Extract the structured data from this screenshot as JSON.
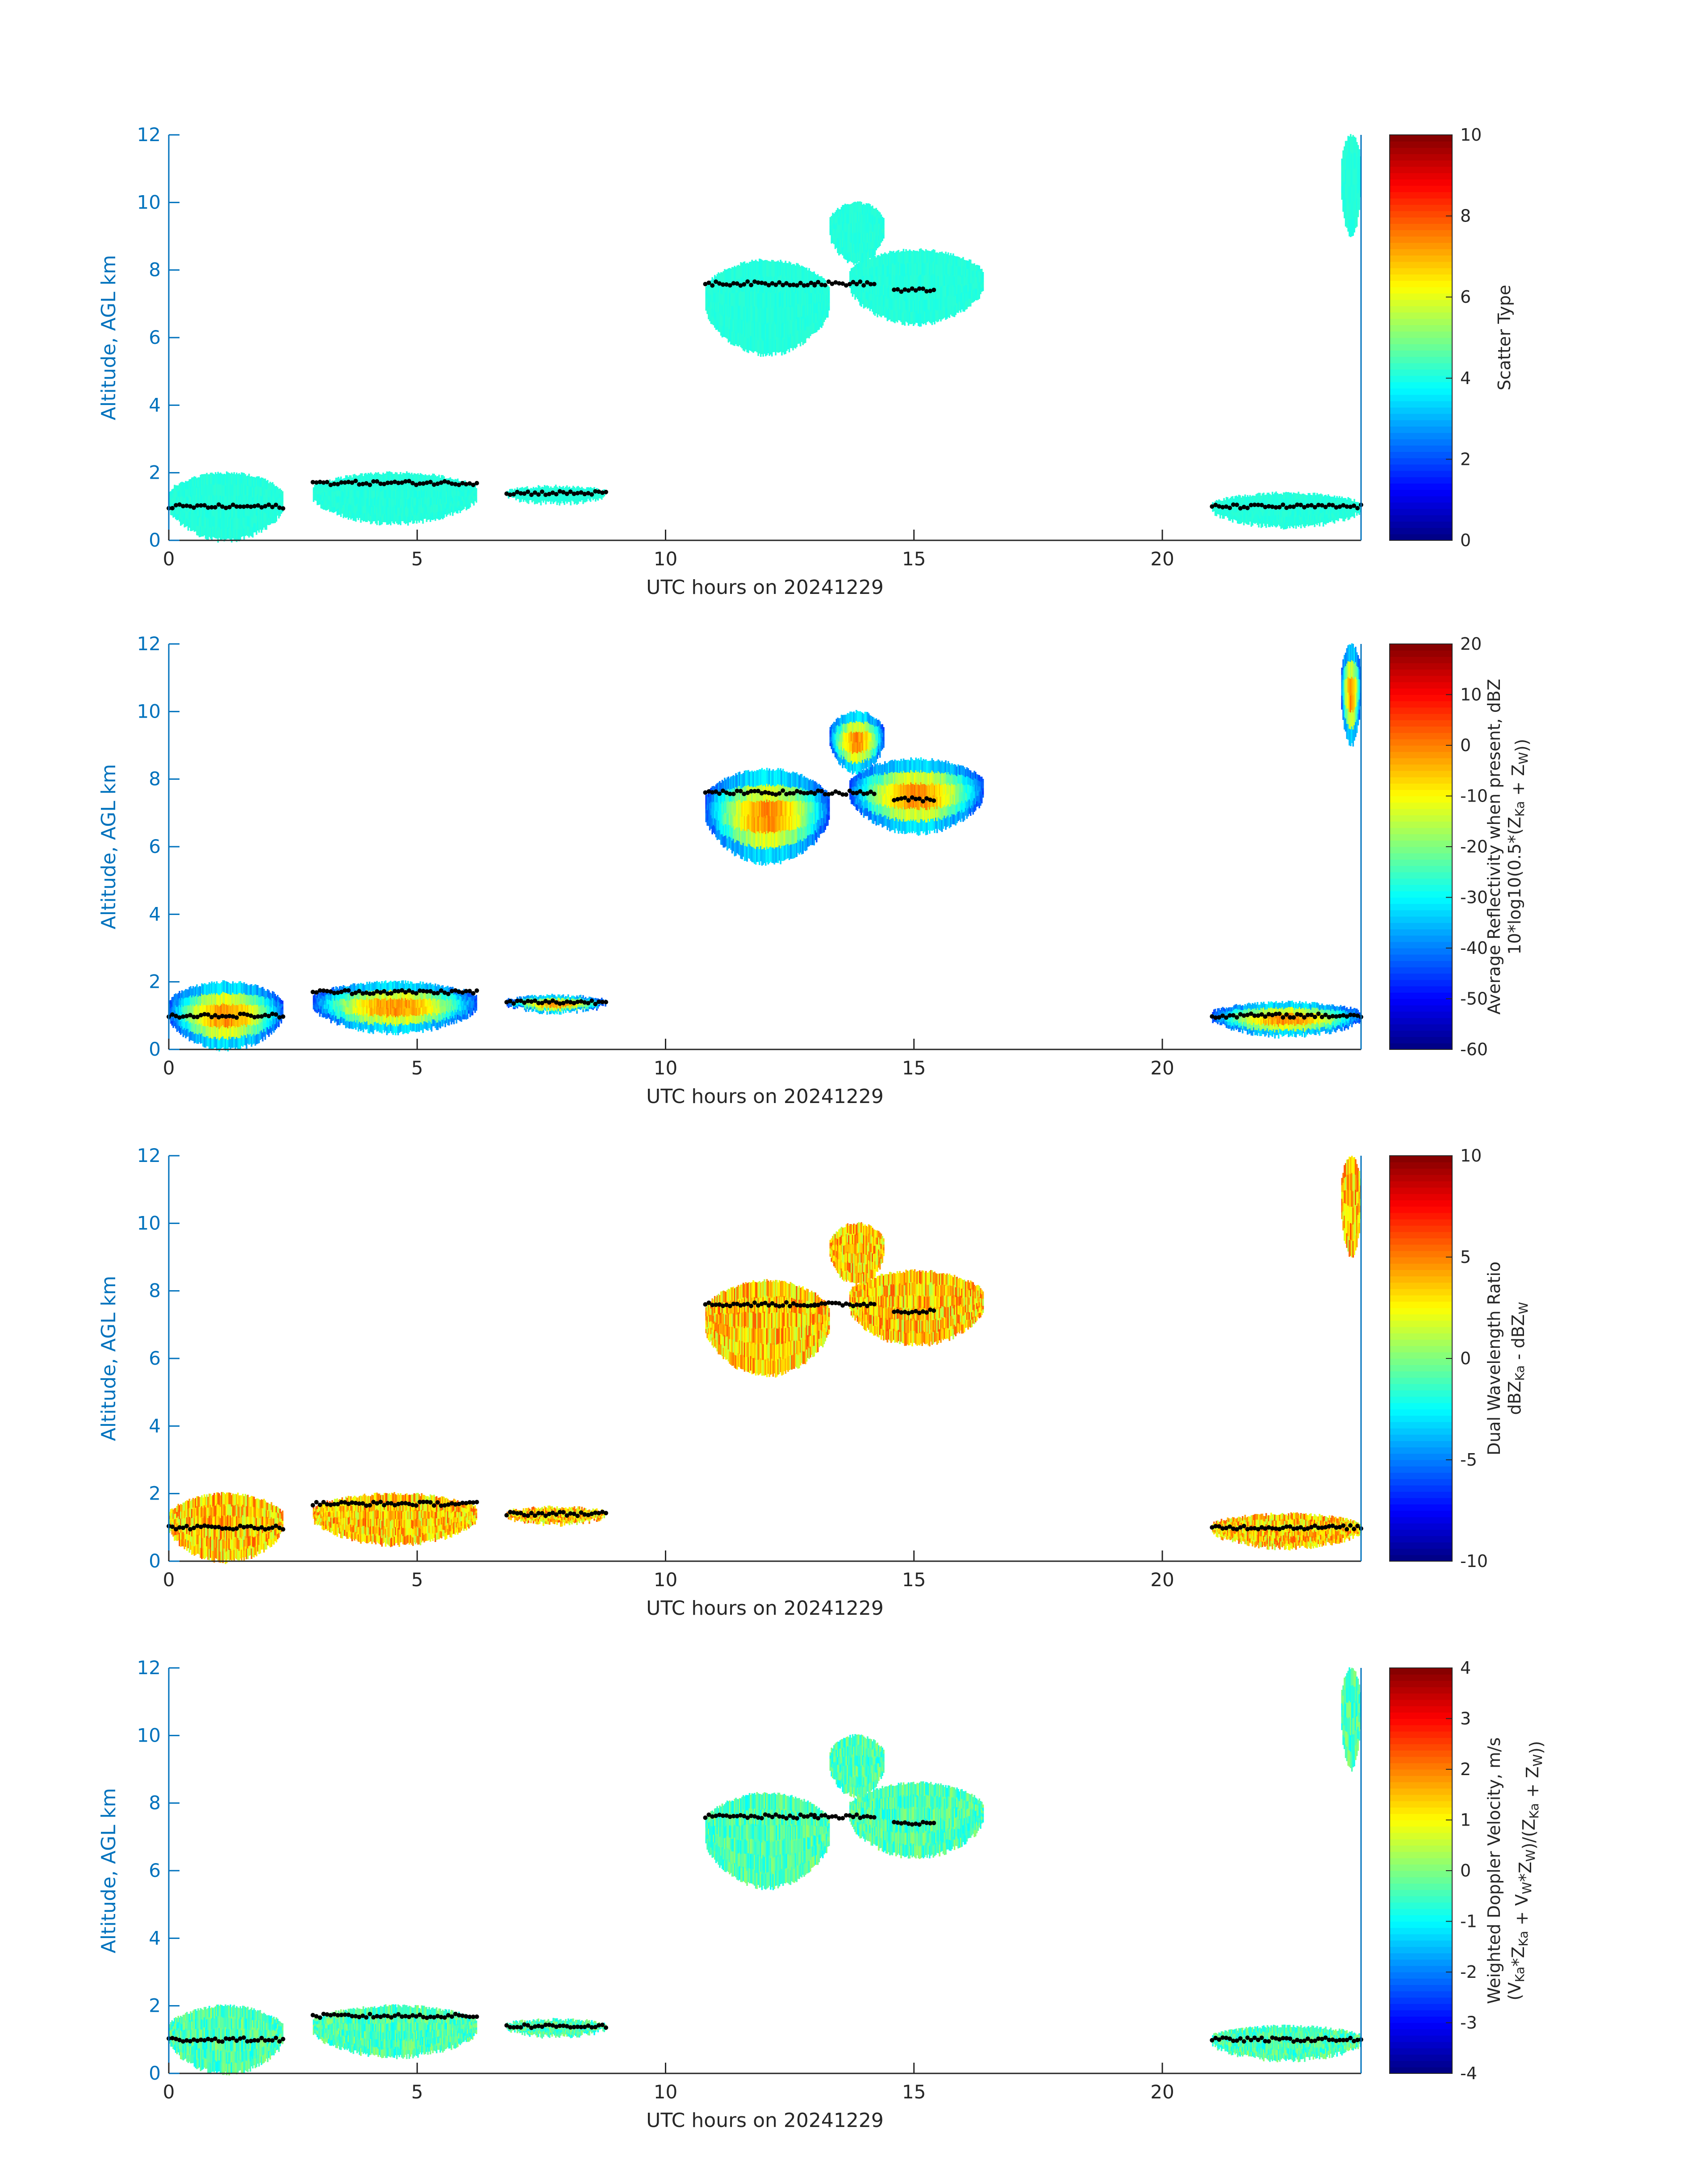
{
  "chart_data": [
    {
      "type": "heatmap",
      "title": "",
      "xlabel": "UTC hours on 20241229",
      "ylabel": "Altitude, AGL km",
      "xlim": [
        0,
        24
      ],
      "ylim": [
        0,
        12
      ],
      "xticks": [
        0,
        5,
        10,
        15,
        20
      ],
      "yticks": [
        0,
        2,
        4,
        6,
        8,
        10,
        12
      ],
      "colorbar": {
        "label_lines": [
          [
            {
              "t": "Scatter Type"
            }
          ]
        ],
        "clim": [
          0,
          10
        ],
        "ticks": [
          0,
          2,
          4,
          6,
          8,
          10
        ],
        "colormap": "jet"
      },
      "mode": "scatter"
    },
    {
      "type": "heatmap",
      "title": "",
      "xlabel": "UTC hours on 20241229",
      "ylabel": "Altitude, AGL km",
      "xlim": [
        0,
        24
      ],
      "ylim": [
        0,
        12
      ],
      "xticks": [
        0,
        5,
        10,
        15,
        20
      ],
      "yticks": [
        0,
        2,
        4,
        6,
        8,
        10,
        12
      ],
      "colorbar": {
        "label_lines": [
          [
            {
              "t": "Average Reflectivity when present, dBZ"
            }
          ],
          [
            {
              "t": "10*log10(0.5*(Z"
            },
            {
              "t": "Ka",
              "sub": true
            },
            {
              "t": " + Z"
            },
            {
              "t": "W",
              "sub": true
            },
            {
              "t": "))"
            }
          ]
        ],
        "clim": [
          -60,
          20
        ],
        "ticks": [
          -60,
          -50,
          -40,
          -30,
          -20,
          -10,
          0,
          10,
          20
        ],
        "colormap": "jet"
      },
      "mode": "refl"
    },
    {
      "type": "heatmap",
      "title": "",
      "xlabel": "UTC hours on 20241229",
      "ylabel": "Altitude, AGL km",
      "xlim": [
        0,
        24
      ],
      "ylim": [
        0,
        12
      ],
      "xticks": [
        0,
        5,
        10,
        15,
        20
      ],
      "yticks": [
        0,
        2,
        4,
        6,
        8,
        10,
        12
      ],
      "colorbar": {
        "label_lines": [
          [
            {
              "t": "Dual Wavelength Ratio"
            }
          ],
          [
            {
              "t": "dBZ"
            },
            {
              "t": "Ka",
              "sub": true
            },
            {
              "t": " - dBZ"
            },
            {
              "t": "W",
              "sub": true
            }
          ]
        ],
        "clim": [
          -10,
          10
        ],
        "ticks": [
          -10,
          -5,
          0,
          5,
          10
        ],
        "colormap": "jet"
      },
      "mode": "dwr"
    },
    {
      "type": "heatmap",
      "title": "",
      "xlabel": "UTC hours on 20241229",
      "ylabel": "Altitude, AGL km",
      "xlim": [
        0,
        24
      ],
      "ylim": [
        0,
        12
      ],
      "xticks": [
        0,
        5,
        10,
        15,
        20
      ],
      "yticks": [
        0,
        2,
        4,
        6,
        8,
        10,
        12
      ],
      "colorbar": {
        "label_lines": [
          [
            {
              "t": "Weighted Doppler Velocity, m/s"
            }
          ],
          [
            {
              "t": "(V"
            },
            {
              "t": "Ka",
              "sub": true
            },
            {
              "t": "*Z"
            },
            {
              "t": "Ka",
              "sub": true
            },
            {
              "t": " + V"
            },
            {
              "t": "W",
              "sub": true
            },
            {
              "t": "*Z"
            },
            {
              "t": "W",
              "sub": true
            },
            {
              "t": ")/(Z"
            },
            {
              "t": "Ka",
              "sub": true
            },
            {
              "t": " + Z"
            },
            {
              "t": "W",
              "sub": true
            },
            {
              "t": "))"
            }
          ]
        ],
        "clim": [
          -4,
          4
        ],
        "ticks": [
          -4,
          -3,
          -2,
          -1,
          0,
          1,
          2,
          3,
          4
        ],
        "colormap": "jet"
      },
      "mode": "vel"
    }
  ],
  "cloud_regions": [
    {
      "name": "upper-cloud-a",
      "x": [
        10.8,
        13.3
      ],
      "base": 5.5,
      "top": 8.3
    },
    {
      "name": "upper-cloud-b",
      "x": [
        13.7,
        16.4
      ],
      "base": 6.4,
      "top": 8.6
    },
    {
      "name": "upper-cloud-c",
      "x": [
        13.3,
        14.4
      ],
      "base": 8.2,
      "top": 10.0
    },
    {
      "name": "cloud-23h",
      "x": [
        23.6,
        24.0
      ],
      "base": 9.0,
      "top": 12.0
    },
    {
      "name": "low-cloud-0-2h",
      "x": [
        0.0,
        2.3
      ],
      "base": 0.0,
      "top": 2.0
    },
    {
      "name": "low-cloud-3-5h",
      "x": [
        2.9,
        6.2
      ],
      "base": 0.5,
      "top": 2.0
    },
    {
      "name": "low-cloud-7-9h",
      "x": [
        6.8,
        8.8
      ],
      "base": 1.1,
      "top": 1.6
    },
    {
      "name": "low-cloud-21-24h",
      "x": [
        21.0,
        24.0
      ],
      "base": 0.4,
      "top": 1.4
    }
  ],
  "cloud_top_trace": [
    {
      "x": [
        10.8,
        13.0
      ],
      "y": 7.6
    },
    {
      "x": [
        13.0,
        14.2
      ],
      "y": 7.6
    },
    {
      "x": [
        14.6,
        15.4
      ],
      "y": 7.4
    },
    {
      "x": [
        0.0,
        2.3
      ],
      "y": 1.0
    },
    {
      "x": [
        2.9,
        6.2
      ],
      "y": 1.7
    },
    {
      "x": [
        6.8,
        8.8
      ],
      "y": 1.4
    },
    {
      "x": [
        21.0,
        24.0
      ],
      "y": 1.0
    }
  ]
}
